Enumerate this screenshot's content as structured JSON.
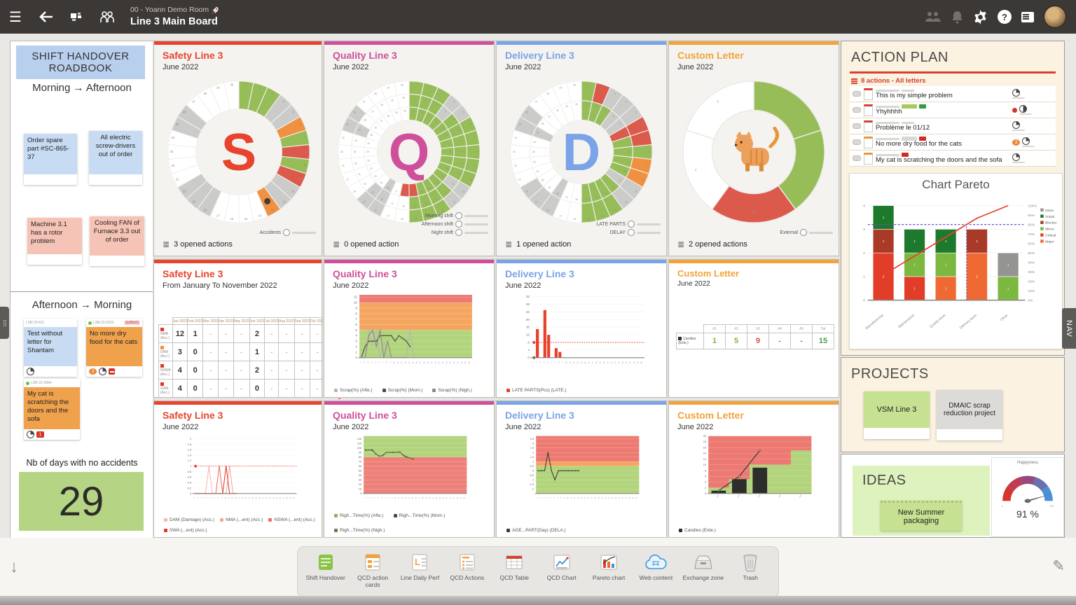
{
  "topbar": {
    "room": "00 - Yoann Demo Room",
    "board": "Line 3 Main Board"
  },
  "shift_handover": {
    "header": "SHIFT HANDOVER ROADBOOK",
    "sections": [
      {
        "title": "Morning → Afternoon",
        "notes": [
          {
            "text": "Order spare part #SC-865-37",
            "color": "#c7dcf3"
          },
          {
            "text": "All electric screw-drivers out of order",
            "color": "#c7dcf3"
          },
          {
            "text": "Machine 3.1 has a rotor problem",
            "color": "#f6c4b6"
          },
          {
            "text": "Cooling FAN of Furnace 3.3 out of order",
            "color": "#f6c4b6"
          }
        ]
      },
      {
        "title": "Afternoon → Morning",
        "notes": [
          {
            "text": "Test without letter for Shantam",
            "color": "#c7dcf3",
            "ref": "L3M 22-611"
          },
          {
            "text": "No more dry food for the cats",
            "color": "#f0a14c",
            "ref": "L3M 22-6333",
            "due": "11/05/22",
            "badge": "3"
          },
          {
            "text": "My cat is scratching the doors and the sofa",
            "color": "#f0a14c",
            "ref": "L3M 22-2664",
            "badge": "1"
          }
        ]
      }
    ],
    "footer_label": "Nb of days with no accidents",
    "footer_value": "29"
  },
  "qcd_panels": {
    "safety": {
      "title": "Safety Line 3",
      "subtitle": "June 2022",
      "subtitle_mid": "From January To November 2022",
      "color": "#e8432e",
      "letter": "S",
      "actions": "3 opened actions"
    },
    "quality": {
      "title": "Quality Line 3",
      "subtitle": "June 2022",
      "color": "#cf4f9b",
      "letter": "Q",
      "actions": "0 opened action"
    },
    "delivery": {
      "title": "Delivery Line 3",
      "subtitle": "June 2022",
      "color": "#7aa3e8",
      "letter": "D",
      "actions": "1 opened action"
    },
    "custom": {
      "title": "Custom Letter",
      "subtitle": "June 2022",
      "color": "#f2a33c",
      "actions": "2 opened actions"
    }
  },
  "action_plan": {
    "title": "ACTION PLAN",
    "summary": "8 actions - All letters",
    "rows": [
      {
        "title": "This is my simple problem"
      },
      {
        "title": "Yhyhhhh",
        "chip": "#2e9e44"
      },
      {
        "title": "Problème le 01/12"
      },
      {
        "title": "No more dry food for the cats",
        "chip": "#cf2d23",
        "badge": "3"
      },
      {
        "title": "My cat is scratching the doors and the sofa",
        "chip": "#cf2d23"
      }
    ],
    "chart_title": "Chart Pareto"
  },
  "projects": {
    "title": "PROJECTS",
    "notes": [
      {
        "text": "VSM Line 3",
        "color": "#c6e191"
      },
      {
        "text": "DMAIC scrap reduction project",
        "color": "#dcdbd8"
      }
    ]
  },
  "ideas": {
    "title": "IDEAS",
    "note": "New Summer packaging",
    "gauge_title": "Happyness",
    "gauge_value": "91 %"
  },
  "nav_tab": "NAV",
  "dock": {
    "items": [
      {
        "label": "Shift Handover"
      },
      {
        "label": "QCD action cards"
      },
      {
        "label": "Line Daily Perf"
      },
      {
        "label": "QCD Actions"
      },
      {
        "label": "QCD Table"
      },
      {
        "label": "QCD Chart"
      },
      {
        "label": "Pareto chart"
      },
      {
        "label": "Web content"
      },
      {
        "label": "Exchange zone"
      },
      {
        "label": "Trash"
      }
    ]
  },
  "status_palette": {
    "g": "#97bd59",
    "r": "#dc5a4c",
    "o": "#ef9140",
    "w": "#ffffff",
    "n": "#cbcbc9"
  },
  "chart_data": [
    {
      "id": "safety-ring",
      "type": "ring-daily",
      "center": "S",
      "center_color": "#e8432e",
      "badge_day": 13,
      "rings": [
        {
          "name": "Accidents",
          "colors": [
            "g",
            "g",
            "g",
            "n",
            "n",
            "o",
            "g",
            "r",
            "g",
            "r",
            "n",
            "n",
            "o",
            "w",
            "w",
            "w",
            "w",
            "n",
            "n",
            "n",
            "w",
            "w",
            "w",
            "w",
            "n",
            "n",
            "w",
            "w",
            "w",
            "w"
          ]
        }
      ]
    },
    {
      "id": "quality-ring",
      "type": "ring-daily",
      "center": "Q",
      "center_color": "#cf4f9b",
      "rings": [
        {
          "name": "Morning shift",
          "colors": [
            "g",
            "g",
            "g",
            "n",
            "n",
            "g",
            "g",
            "g",
            "g",
            "g",
            "n",
            "n",
            "g",
            "g",
            "g",
            "w",
            "w",
            "n",
            "n",
            "w",
            "w",
            "w",
            "w",
            "w",
            "n",
            "n",
            "w",
            "w",
            "w",
            "w"
          ]
        },
        {
          "name": "Afternoon shift",
          "colors": [
            "g",
            "g",
            "g",
            "n",
            "g",
            "g",
            "g",
            "g",
            "g",
            "g",
            "n",
            "g",
            "g",
            "g",
            "g",
            "w",
            "w",
            "n",
            "n",
            "w",
            "w",
            "w",
            "w",
            "w",
            "n",
            "w",
            "w",
            "w",
            "w",
            "w"
          ]
        },
        {
          "name": "Night shift",
          "colors": [
            "g",
            "g",
            "g",
            "g",
            "g",
            "g",
            "g",
            "g",
            "g",
            "g",
            "g",
            "g",
            "g",
            "g",
            "r",
            "r",
            "w",
            "n",
            "w",
            "w",
            "w",
            "w",
            "w",
            "w",
            "w",
            "w",
            "w",
            "w",
            "w",
            "w"
          ]
        }
      ]
    },
    {
      "id": "delivery-ring",
      "type": "ring-daily",
      "center": "D",
      "center_color": "#7aa3e8",
      "rings": [
        {
          "name": "LATE PARTS",
          "colors": [
            "g",
            "r",
            "n",
            "n",
            "n",
            "r",
            "r",
            "g",
            "o",
            "o",
            "n",
            "n",
            "g",
            "g",
            "g",
            "w",
            "w",
            "n",
            "n",
            "n",
            "w",
            "w",
            "w",
            "w",
            "n",
            "n",
            "w",
            "w",
            "w",
            "w"
          ]
        },
        {
          "name": "DELAY",
          "colors": [
            "g",
            "g",
            "g",
            "n",
            "n",
            "r",
            "g",
            "g",
            "g",
            "g",
            "n",
            "g",
            "g",
            "g",
            "g",
            "w",
            "w",
            "n",
            "w",
            "w",
            "w",
            "w",
            "w",
            "w",
            "n",
            "w",
            "w",
            "w",
            "w",
            "w"
          ]
        }
      ]
    },
    {
      "id": "custom-ring",
      "type": "donut",
      "center": "cat",
      "legend": "External",
      "segments": [
        "g",
        "g",
        "r",
        "w",
        "w"
      ]
    },
    {
      "id": "safety-months",
      "type": "month-table",
      "months": [
        "Jan 2022",
        "Feb 2022",
        "Mar 2022",
        "Apr 2022",
        "May 2022",
        "Jun 2022",
        "Jul 2022",
        "Aug 2022",
        "Sep 2022",
        "Oct 2022",
        "Nov 2022"
      ],
      "rows": [
        {
          "label": "NMA (Acc.)",
          "values": [
            "12",
            "1",
            "-",
            "-",
            "-",
            "2",
            "-",
            "-",
            "-",
            "-",
            "-"
          ],
          "max": "Max 48",
          "dot": "#e2352b"
        },
        {
          "label": "DAM (Acc.)",
          "values": [
            "3",
            "0",
            "-",
            "-",
            "-",
            "1",
            "-",
            "-",
            "-",
            "-",
            "-"
          ],
          "max": "Max 12",
          "dot": "#f0923e"
        },
        {
          "label": "NSWA (Acc.)",
          "values": [
            "4",
            "0",
            "-",
            "-",
            "-",
            "2",
            "-",
            "-",
            "-",
            "-",
            "-"
          ],
          "max": "Max 0",
          "dot": "#e2352b"
        },
        {
          "label": "SWA (Acc.)",
          "values": [
            "4",
            "0",
            "-",
            "-",
            "-",
            "0",
            "-",
            "-",
            "-",
            "-",
            "-"
          ],
          "max": "Max 0",
          "dot": "#e2352b"
        }
      ]
    },
    {
      "id": "quality-mid",
      "type": "line",
      "ylim": [
        0,
        11.4
      ],
      "yticks": [
        0,
        1,
        2,
        3,
        4,
        5,
        6,
        7,
        8,
        9,
        10,
        11
      ],
      "xmax": 30,
      "bands": [
        [
          0,
          5,
          "#b2d47c"
        ],
        [
          5,
          10,
          "#f4a661"
        ],
        [
          10,
          11.4,
          "#ed7a72"
        ]
      ],
      "series": [
        {
          "name": "Scrap(%) (Afte.)",
          "color": "#b9b7b4",
          "y": [
            0,
            0,
            5,
            2,
            5,
            0,
            3,
            0,
            0,
            0,
            0,
            0,
            0,
            5,
            0,
            0
          ]
        },
        {
          "name": "Scrap(%) (Morn.)",
          "color": "#4a4a48",
          "y": [
            0,
            2,
            3,
            3,
            3,
            4,
            4,
            4,
            4,
            3,
            4,
            3.5,
            3,
            2
          ]
        },
        {
          "name": "Scrap(%) (Nigh.)",
          "color": "#8b8987",
          "y": [
            0,
            0,
            4,
            5,
            2,
            5,
            0,
            3,
            0,
            0,
            0,
            0,
            0
          ]
        }
      ]
    },
    {
      "id": "delivery-mid",
      "type": "bar",
      "ylim": [
        0,
        33
      ],
      "yticks": [
        0,
        4,
        8,
        12,
        16,
        20,
        24,
        28,
        32
      ],
      "xmax": 30,
      "bars": [
        [
          2,
          15
        ],
        [
          4,
          25
        ],
        [
          5,
          12
        ],
        [
          7,
          5
        ],
        [
          8,
          3
        ]
      ],
      "bar_color": "#e8402a",
      "thresholds": [
        {
          "y": 8,
          "color": "#e8402a"
        },
        {
          "y": 0,
          "color": "#8a5a3a"
        }
      ],
      "legend": [
        {
          "label": "LATE PARTS(Pcs) (LATE.)",
          "color": "#e8402a"
        }
      ]
    },
    {
      "id": "custom-mid",
      "type": "simple-table",
      "headers": [
        "#1",
        "#2",
        "#3",
        "#4",
        "#5",
        "Tot"
      ],
      "row_label": "Candies (Exte.)",
      "values": [
        "1",
        "5",
        "9",
        "-",
        "-",
        "15"
      ],
      "value_colors": [
        "#7cb83f",
        "#7cb83f",
        "#d94f3f",
        "#555555",
        "#555555",
        "#4f9e4f"
      ]
    },
    {
      "id": "safety-bot",
      "type": "line",
      "ylim": [
        0,
        2.1
      ],
      "yticks": [
        0,
        0.2,
        0.4,
        0.6,
        0.8,
        1,
        1.2,
        1.4,
        1.6,
        1.8,
        2
      ],
      "xmax": 30,
      "thresholds": [
        {
          "y": 1,
          "color": "#e8402a"
        }
      ],
      "series": [
        {
          "name": "DAM (Damage) (Acc.)",
          "color": "#f6b9b0",
          "y": [
            0,
            0,
            0,
            0,
            1,
            0,
            0,
            0,
            0,
            0,
            0,
            0,
            0
          ]
        },
        {
          "name": "NMA (...ent) (Acc.)",
          "color": "#f3a79c",
          "y": [
            0,
            0,
            0,
            0,
            0,
            0,
            0,
            0,
            0,
            0,
            1,
            0,
            0
          ]
        },
        {
          "name": "NSWA (...ent) (Acc.)",
          "color": "#ee6f5e",
          "y": [
            0,
            0,
            0,
            0,
            0,
            0,
            0,
            1,
            0,
            0,
            0,
            0,
            0
          ]
        },
        {
          "name": "SWA (...ent) (Acc.)",
          "color": "#e2352b",
          "y": [
            0,
            0,
            0,
            0,
            0,
            0,
            0,
            0,
            0,
            1,
            0,
            0,
            0
          ]
        }
      ]
    },
    {
      "id": "quality-bot",
      "type": "line",
      "ylim": [
        0,
        126
      ],
      "yticks": [
        0,
        10,
        20,
        30,
        40,
        50,
        60,
        70,
        80,
        90,
        100,
        110,
        120
      ],
      "xmax": 30,
      "bands": [
        [
          0,
          80,
          "#ed8078"
        ],
        [
          80,
          126,
          "#b2d47c"
        ]
      ],
      "series": [
        {
          "name": "Righ...Time(%) (Afte.)",
          "color": "#9aa86a",
          "y": [
            95,
            96,
            95,
            86,
            83,
            82,
            89,
            91,
            90,
            91,
            90,
            85,
            81,
            77,
            76
          ]
        },
        {
          "name": "Righ...Time(%) (Morn.)",
          "color": "#4a4a48",
          "y": [
            96,
            95,
            96,
            87,
            82,
            83,
            90,
            90,
            90,
            90,
            91,
            84,
            80,
            78,
            75
          ]
        },
        {
          "name": "Righ...Time(%) (Nigh.)",
          "color": "#6f7d4f",
          "y": [
            94,
            96,
            94,
            88,
            81,
            84,
            90,
            90,
            91,
            90,
            92,
            83,
            79,
            78,
            76
          ]
        }
      ]
    },
    {
      "id": "delivery-bot",
      "type": "line",
      "ylim": [
        -2.5,
        3.8
      ],
      "yticks": [
        3.5,
        3,
        2.5,
        2,
        1.5,
        1,
        0.5,
        0,
        -0.5,
        -1,
        -1.5,
        -2
      ],
      "xmax": 30,
      "bands": [
        [
          -2.5,
          0.5,
          "#b2d47c"
        ],
        [
          0.5,
          1,
          "#f4a661"
        ],
        [
          1,
          3.8,
          "#ed7a72"
        ]
      ],
      "series": [
        {
          "name": "AGE...PART(Day) (DELA.)",
          "color": "#3a3a38",
          "y": [
            0,
            0,
            0,
            2,
            0,
            -1,
            0,
            0,
            0,
            0,
            0,
            0,
            0
          ]
        }
      ]
    },
    {
      "id": "custom-bot",
      "type": "combo",
      "ylim": [
        0,
        20
      ],
      "yticks": [
        0,
        2,
        4,
        6,
        8,
        10,
        12,
        14,
        16,
        18,
        20
      ],
      "steps": [
        2,
        5,
        10,
        10,
        15
      ],
      "bars": [
        1,
        5,
        9
      ],
      "line": [
        1,
        6,
        15
      ],
      "colors": {
        "step": "#b2d47c",
        "above": "#ed7a72",
        "bar": "#2d2d2b",
        "line": "#3a3a38"
      },
      "legend": [
        {
          "label": "Candies (Exte.)",
          "color": "#2d2d2b"
        }
      ]
    },
    {
      "id": "pareto",
      "type": "pareto",
      "title": "Chart Pareto",
      "categories": [
        "Manufacturing",
        "Maintenance",
        "Quality team",
        "Delivery team",
        "Other"
      ],
      "severities": [
        {
          "key": "none",
          "label": "None",
          "color": "#949492"
        },
        {
          "key": "trivial",
          "label": "Trivial",
          "color": "#1d7a2c"
        },
        {
          "key": "blocker",
          "label": "Blocker",
          "color": "#a93a27"
        },
        {
          "key": "minor",
          "label": "Minor",
          "color": "#7cb83f"
        },
        {
          "key": "critical",
          "label": "Critical",
          "color": "#e23d28"
        },
        {
          "key": "major",
          "label": "Major",
          "color": "#ef6a33"
        }
      ],
      "stacks": [
        [
          [
            "critical",
            2
          ],
          [
            "blocker",
            1
          ],
          [
            "trivial",
            1
          ]
        ],
        [
          [
            "critical",
            1
          ],
          [
            "minor",
            1
          ],
          [
            "trivial",
            1
          ]
        ],
        [
          [
            "major",
            1
          ],
          [
            "minor",
            1
          ],
          [
            "trivial",
            1
          ]
        ],
        [
          [
            "major",
            2
          ],
          [
            "blocker",
            1
          ]
        ],
        [
          [
            "minor",
            1
          ],
          [
            "none",
            1
          ]
        ]
      ],
      "cumulative_pct": [
        26.7,
        46.7,
        66.7,
        86.7,
        100
      ],
      "target_pct": 80,
      "ylim": [
        0,
        4
      ],
      "right_ticks": [
        0,
        10,
        20,
        30,
        40,
        50,
        60,
        70,
        80,
        90,
        100
      ]
    },
    {
      "id": "gauge",
      "type": "gauge",
      "title": "Happyness",
      "value": 91,
      "display": "91 %",
      "colors": [
        "#d5352c",
        "#c03a53",
        "#95497f",
        "#6a6fae",
        "#4b90d6"
      ]
    }
  ]
}
